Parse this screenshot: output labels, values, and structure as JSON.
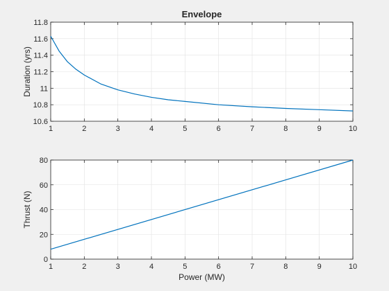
{
  "colors": {
    "figure_background": "#f0f0f0",
    "axes_background": "#ffffff",
    "series_line": "#0072bd",
    "grid": "#e2e2e2",
    "axis": "#262626"
  },
  "chart_data": [
    {
      "type": "line",
      "title": "Envelope",
      "xlabel": "",
      "ylabel": "Duration (yrs)",
      "xlim": [
        1,
        10
      ],
      "ylim": [
        10.6,
        11.8
      ],
      "xticks": [
        1,
        2,
        3,
        4,
        5,
        6,
        7,
        8,
        9,
        10
      ],
      "xtick_labels": [
        "1",
        "2",
        "3",
        "4",
        "5",
        "6",
        "7",
        "8",
        "9",
        "10"
      ],
      "yticks": [
        10.6,
        10.8,
        11.0,
        11.2,
        11.4,
        11.6,
        11.8
      ],
      "ytick_labels": [
        "10.6",
        "10.8",
        "11",
        "11.2",
        "11.4",
        "11.6",
        "11.8"
      ],
      "grid": true,
      "series": [
        {
          "x": [
            1,
            1.25,
            1.5,
            1.75,
            2,
            2.5,
            3,
            3.5,
            4,
            4.5,
            5,
            6,
            7,
            8,
            9,
            10
          ],
          "values": [
            11.63,
            11.45,
            11.32,
            11.23,
            11.16,
            11.05,
            10.98,
            10.93,
            10.89,
            10.86,
            10.84,
            10.8,
            10.775,
            10.755,
            10.74,
            10.725
          ]
        }
      ]
    },
    {
      "type": "line",
      "title": "",
      "xlabel": "Power (MW)",
      "ylabel": "Thrust (N)",
      "xlim": [
        1,
        10
      ],
      "ylim": [
        0,
        80
      ],
      "xticks": [
        1,
        2,
        3,
        4,
        5,
        6,
        7,
        8,
        9,
        10
      ],
      "xtick_labels": [
        "1",
        "2",
        "3",
        "4",
        "5",
        "6",
        "7",
        "8",
        "9",
        "10"
      ],
      "yticks": [
        0,
        20,
        40,
        60,
        80
      ],
      "ytick_labels": [
        "0",
        "20",
        "40",
        "60",
        "80"
      ],
      "grid": true,
      "series": [
        {
          "x": [
            1,
            10
          ],
          "values": [
            8,
            80
          ]
        }
      ]
    }
  ]
}
